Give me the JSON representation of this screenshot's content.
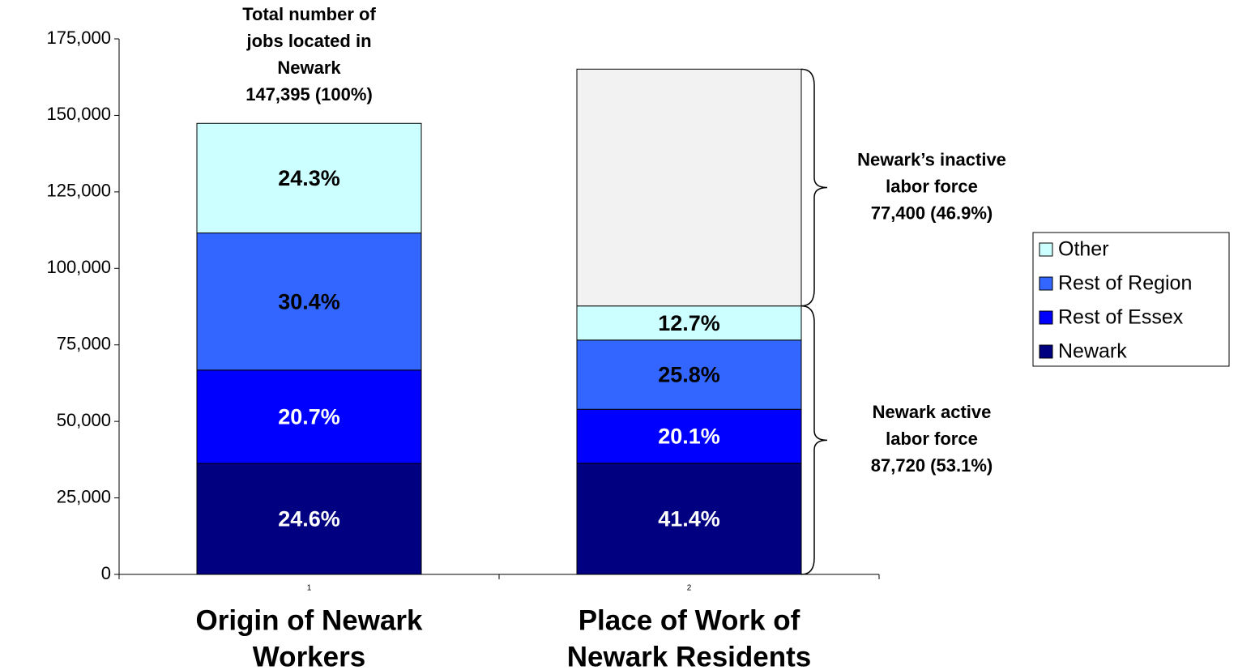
{
  "chart_data": {
    "type": "stacked_bar",
    "categories": [
      "1",
      "2"
    ],
    "group_labels": [
      [
        "Origin of Newark",
        "Workers"
      ],
      [
        "Place of Work of",
        "Newark Residents"
      ]
    ],
    "series": [
      {
        "name": "Newark",
        "color": "#000080",
        "label_color": "#ffffff",
        "values": [
          36260,
          36316
        ],
        "segment_labels": [
          "24.6%",
          "41.4%"
        ]
      },
      {
        "name": "Rest of Essex",
        "color": "#0000ff",
        "label_color": "#ffffff",
        "values": [
          30510,
          17632
        ],
        "segment_labels": [
          "20.7%",
          "20.1%"
        ]
      },
      {
        "name": "Rest of Region",
        "color": "#3366ff",
        "label_color": "#000000",
        "values": [
          44810,
          22632
        ],
        "segment_labels": [
          "30.4%",
          "25.8%"
        ]
      },
      {
        "name": "Other",
        "color": "#ccffff",
        "label_color": "#000000",
        "values": [
          35815,
          11140
        ],
        "segment_labels": [
          "24.3%",
          "12.7%"
        ]
      }
    ],
    "inactive": {
      "color": "#f2f2f2",
      "values": [
        null,
        77400
      ]
    },
    "annotations": [
      {
        "lines": [
          "Total number of",
          "jobs located in",
          "Newark",
          "147,395 (100%)"
        ]
      },
      {
        "lines": [
          "Newark’s inactive",
          "labor force",
          "77,400 (46.9%)"
        ]
      },
      {
        "lines": [
          "Newark active",
          "labor force",
          "87,720 (53.1%)"
        ]
      }
    ],
    "ylim": [
      0,
      175000
    ],
    "yticks": [
      {
        "value": 0,
        "label": "0"
      },
      {
        "value": 25000,
        "label": "25,000"
      },
      {
        "value": 50000,
        "label": "50,000"
      },
      {
        "value": 75000,
        "label": "75,000"
      },
      {
        "value": 100000,
        "label": "100,000"
      },
      {
        "value": 125000,
        "label": "125,000"
      },
      {
        "value": 150000,
        "label": "150,000"
      },
      {
        "value": 175000,
        "label": "175,000"
      }
    ],
    "legend": "right"
  }
}
